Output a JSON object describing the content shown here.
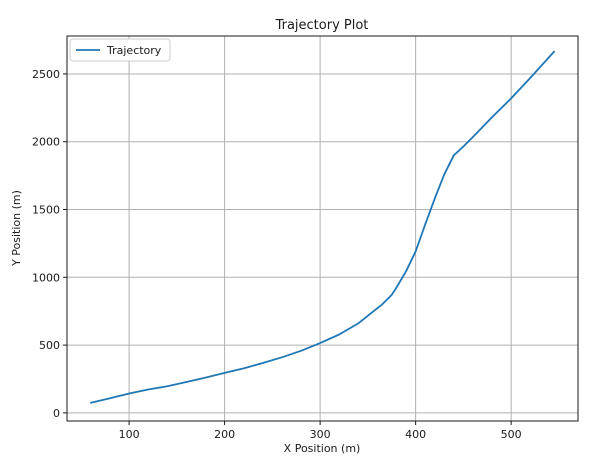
{
  "chart_data": {
    "type": "line",
    "title": "Trajectory Plot",
    "xlabel": "X Position (m)",
    "ylabel": "Y Position (m)",
    "xlim": [
      35,
      570
    ],
    "ylim": [
      -60,
      2780
    ],
    "xticks": [
      100,
      200,
      300,
      400,
      500
    ],
    "yticks": [
      0,
      500,
      1000,
      1500,
      2000,
      2500
    ],
    "grid": true,
    "legend_position": "top-left",
    "series": [
      {
        "name": "Trajectory",
        "color": "#1f77b4",
        "x": [
          60,
          80,
          100,
          120,
          140,
          160,
          180,
          200,
          220,
          240,
          260,
          280,
          300,
          320,
          340,
          355,
          365,
          375,
          380,
          390,
          400,
          410,
          420,
          430,
          440,
          450,
          460,
          480,
          500,
          520,
          545
        ],
        "y": [
          75,
          108,
          143,
          172,
          197,
          228,
          260,
          295,
          328,
          368,
          410,
          458,
          515,
          578,
          660,
          745,
          800,
          870,
          925,
          1045,
          1190,
          1390,
          1580,
          1760,
          1900,
          1965,
          2035,
          2180,
          2320,
          2470,
          2665
        ]
      }
    ]
  }
}
